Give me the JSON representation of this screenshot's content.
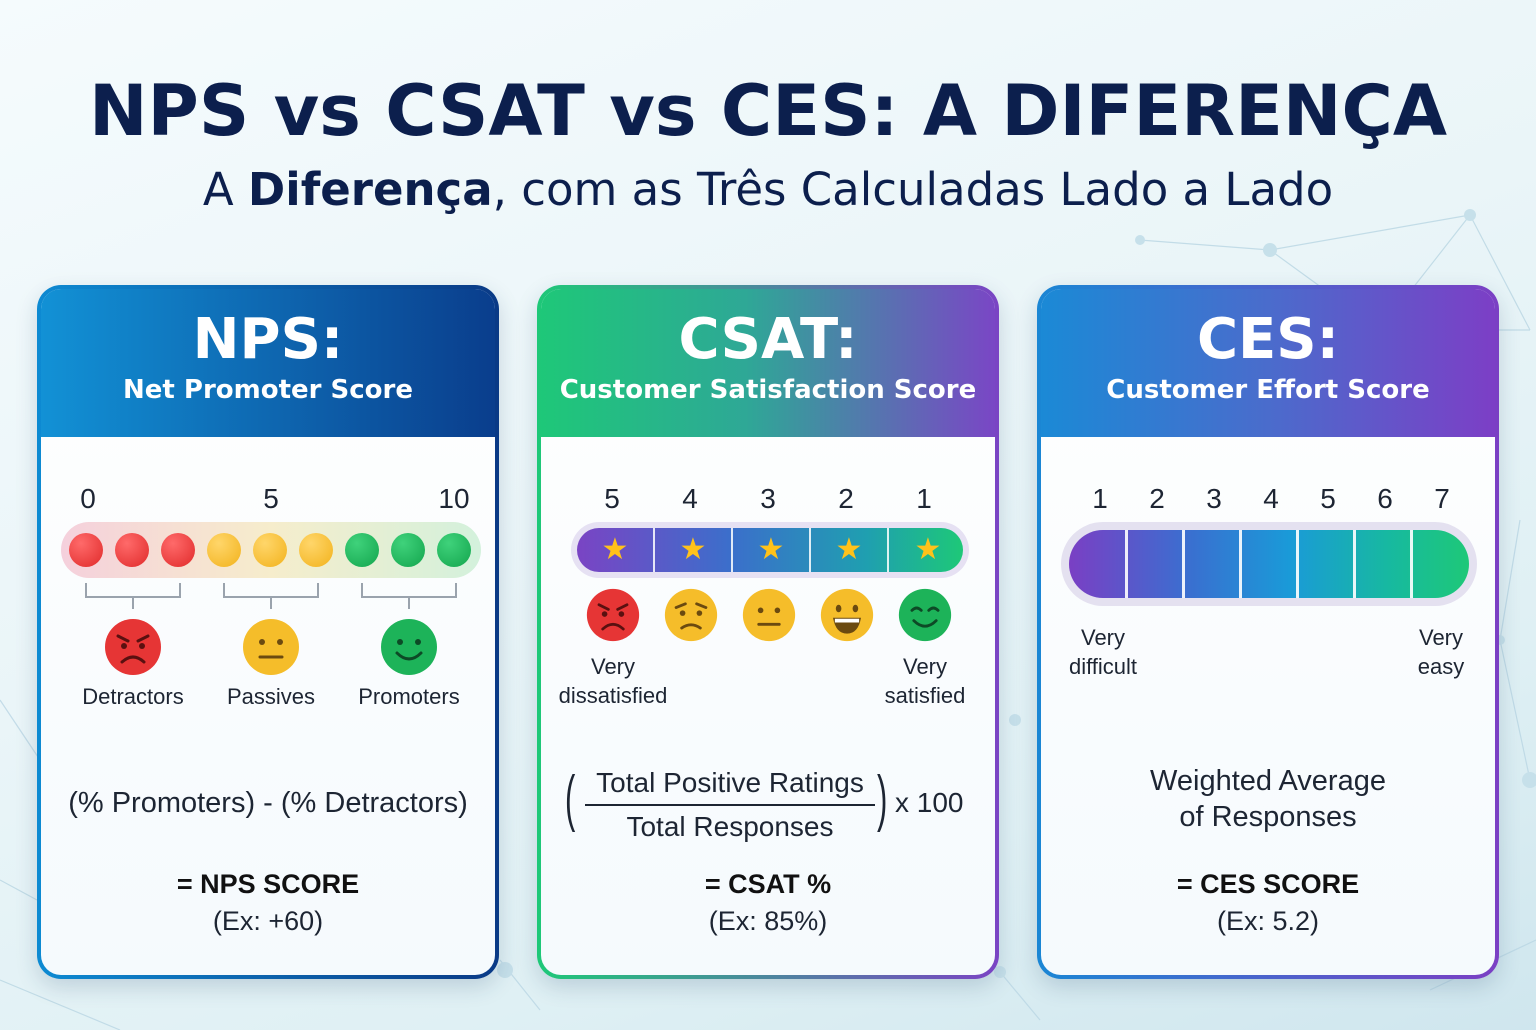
{
  "title": "NPS vs CSAT vs CES: A DIFERENÇA",
  "subtitle": {
    "prefix": "A ",
    "bold": "Diferença",
    "suffix": ", com as Três Calculadas Lado a Lado"
  },
  "cards": {
    "nps": {
      "title": "NPS:",
      "name": "Net Promoter Score",
      "scale": [
        "0",
        "5",
        "10"
      ],
      "groups": [
        "Detractors",
        "Passives",
        "Promoters"
      ],
      "formula": "(% Promoters) - (% Detractors)",
      "result": "= NPS SCORE",
      "example": "(Ex: +60)",
      "colors": {
        "detractor": "#e63535",
        "passive": "#f5bd2a",
        "promoter": "#1db359"
      }
    },
    "csat": {
      "title": "CSAT:",
      "name": "Customer Satisfaction Score",
      "scale": [
        "5",
        "4",
        "3",
        "2",
        "1"
      ],
      "low_label": "Very dissatisfied",
      "high_label": "Very satisfied",
      "formula_numerator": "Total Positive Ratings",
      "formula_denominator": "Total Responses",
      "formula_multiplier": "x 100",
      "result": "= CSAT %",
      "example": "(Ex: 85%)",
      "icons": [
        "angry-face-icon",
        "worried-face-icon",
        "neutral-face-icon",
        "grinning-face-icon",
        "smiling-face-icon"
      ]
    },
    "ces": {
      "title": "CES:",
      "name": "Customer Effort Score",
      "scale": [
        "1",
        "2",
        "3",
        "4",
        "5",
        "6",
        "7"
      ],
      "low_label": "Very difficult",
      "high_label": "Very easy",
      "formula": "Weighted Average of Responses",
      "result": "= CES SCORE",
      "example": "(Ex: 5.2)"
    }
  }
}
